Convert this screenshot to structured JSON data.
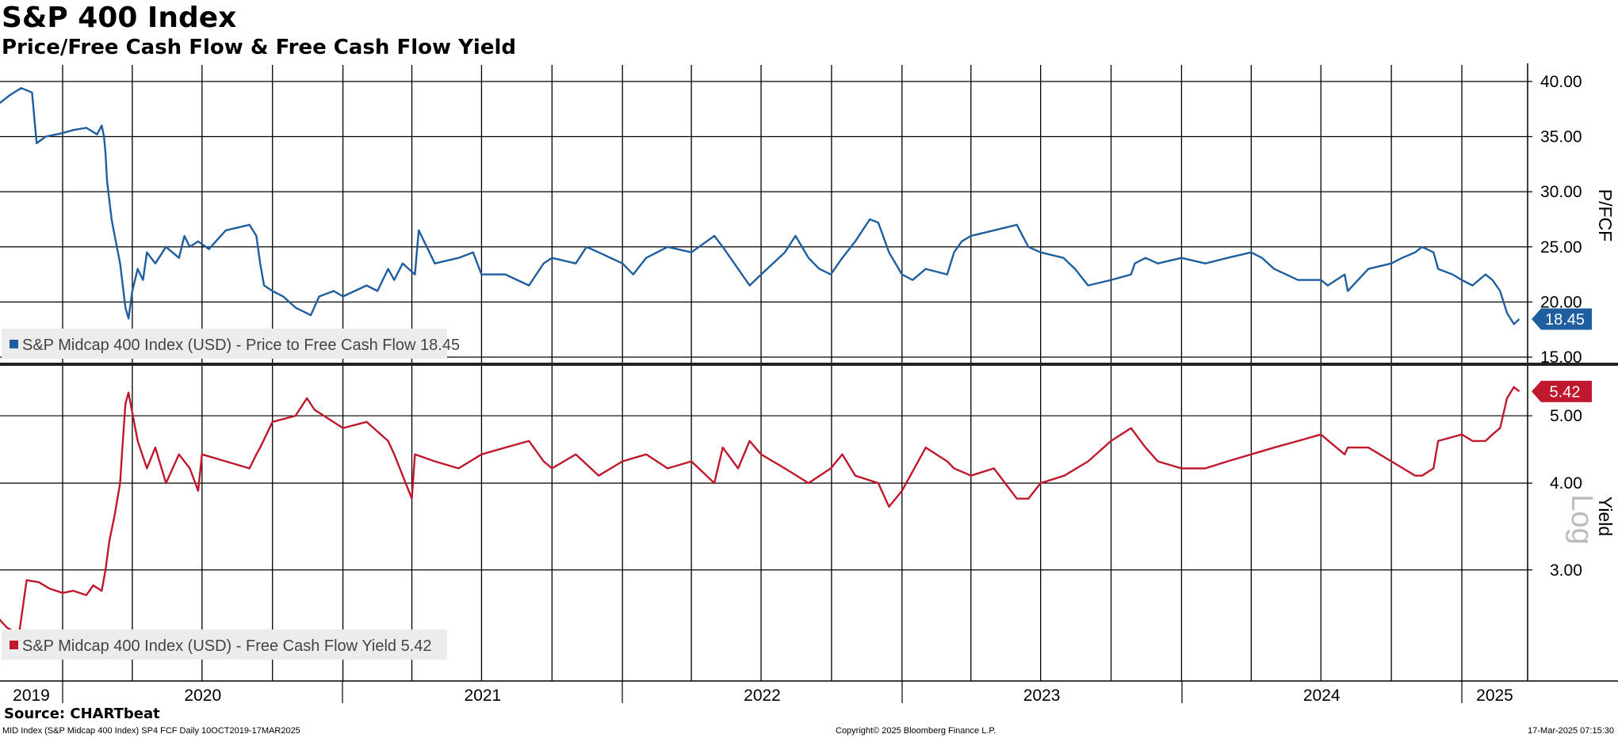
{
  "title": "S&P 400 Index",
  "subtitle": "Price/Free Cash Flow & Free Cash Flow Yield",
  "source": "Source: CHARTbeat",
  "footer": {
    "left": "MID Index (S&P Midcap 400 Index) SP4 FCF  Daily 10OCT2019-17MAR2025",
    "center": "Copyright© 2025 Bloomberg Finance L.P.",
    "right": "17-Mar-2025 07:15:30"
  },
  "colors": {
    "pfcf": "#1f5fa0",
    "yield": "#c0182e",
    "grid": "#000000"
  },
  "chart_data": [
    {
      "type": "line",
      "panel": "top",
      "axis_label": "P/FCF",
      "y_ticks": [
        "40.00",
        "35.00",
        "30.00",
        "25.00",
        "20.00",
        "15.00"
      ],
      "ylim": [
        14.5,
        41.5
      ],
      "grid": true,
      "legend": "bottom-left",
      "last_value_label": "18.45",
      "series": [
        {
          "name": "S&P Midcap 400 Index (USD) - Price to Free Cash Flow 18.45",
          "x": [
            "2019-10-10",
            "2019-10-25",
            "2019-11-08",
            "2019-11-22",
            "2019-11-28",
            "2019-12-10",
            "2019-12-31",
            "2020-01-15",
            "2020-02-01",
            "2020-02-15",
            "2020-02-21",
            "2020-02-24",
            "2020-02-26",
            "2020-02-28",
            "2020-03-05",
            "2020-03-09",
            "2020-03-16",
            "2020-03-23",
            "2020-03-27",
            "2020-04-01",
            "2020-04-08",
            "2020-04-15",
            "2020-04-20",
            "2020-05-01",
            "2020-05-15",
            "2020-06-01",
            "2020-06-08",
            "2020-06-15",
            "2020-06-26",
            "2020-07-10",
            "2020-08-01",
            "2020-09-01",
            "2020-09-10",
            "2020-09-15",
            "2020-09-20",
            "2020-10-01",
            "2020-10-15",
            "2020-10-31",
            "2020-11-20",
            "2020-12-01",
            "2020-12-20",
            "2021-01-01",
            "2021-02-01",
            "2021-02-15",
            "2021-03-01",
            "2021-03-09",
            "2021-03-20",
            "2021-04-05",
            "2021-04-10",
            "2021-05-01",
            "2021-06-01",
            "2021-06-20",
            "2021-07-01",
            "2021-08-01",
            "2021-09-01",
            "2021-09-20",
            "2021-10-01",
            "2021-11-01",
            "2021-11-15",
            "2021-12-01",
            "2022-01-01",
            "2022-01-15",
            "2022-02-01",
            "2022-03-01",
            "2022-04-01",
            "2022-05-01",
            "2022-05-12",
            "2022-06-01",
            "2022-06-16",
            "2022-07-01",
            "2022-08-01",
            "2022-08-15",
            "2022-09-01",
            "2022-09-15",
            "2022-09-30",
            "2022-10-15",
            "2022-11-01",
            "2022-11-20",
            "2022-12-01",
            "2022-12-15",
            "2023-01-01",
            "2023-01-15",
            "2023-02-01",
            "2023-03-01",
            "2023-03-10",
            "2023-03-20",
            "2023-04-01",
            "2023-05-01",
            "2023-05-31",
            "2023-06-15",
            "2023-07-01",
            "2023-07-31",
            "2023-08-15",
            "2023-09-01",
            "2023-10-01",
            "2023-10-27",
            "2023-11-01",
            "2023-11-15",
            "2023-12-01",
            "2024-01-01",
            "2024-02-01",
            "2024-03-01",
            "2024-04-01",
            "2024-04-15",
            "2024-05-01",
            "2024-06-01",
            "2024-07-01",
            "2024-07-10",
            "2024-08-01",
            "2024-08-05",
            "2024-09-01",
            "2024-10-01",
            "2024-10-15",
            "2024-11-01",
            "2024-11-10",
            "2024-11-25",
            "2024-12-01",
            "2024-12-20",
            "2025-01-01",
            "2025-01-15",
            "2025-02-01",
            "2025-02-10",
            "2025-02-20",
            "2025-03-01",
            "2025-03-10",
            "2025-03-17"
          ],
          "values": [
            38.0,
            38.8,
            39.4,
            39.0,
            34.4,
            35.0,
            35.3,
            35.6,
            35.8,
            35.2,
            36.0,
            35.0,
            33.5,
            31.0,
            27.5,
            26.0,
            23.5,
            19.5,
            18.5,
            21.0,
            23.0,
            22.0,
            24.5,
            23.5,
            25.0,
            24.0,
            26.0,
            25.0,
            25.5,
            24.8,
            26.5,
            27.0,
            26.0,
            23.5,
            21.5,
            21.0,
            20.5,
            19.5,
            18.8,
            20.5,
            21.0,
            20.5,
            21.5,
            21.0,
            23.0,
            22.0,
            23.5,
            22.5,
            26.5,
            23.5,
            24.0,
            24.5,
            22.5,
            22.5,
            21.5,
            23.5,
            24.0,
            23.5,
            25.0,
            24.5,
            23.5,
            22.5,
            24.0,
            25.0,
            24.5,
            26.0,
            25.0,
            23.0,
            21.5,
            22.5,
            24.5,
            26.0,
            24.0,
            23.0,
            22.5,
            24.0,
            25.5,
            27.5,
            27.2,
            24.5,
            22.5,
            22.0,
            23.0,
            22.5,
            24.5,
            25.5,
            26.0,
            26.5,
            27.0,
            25.0,
            24.5,
            24.0,
            23.0,
            21.5,
            22.0,
            22.5,
            23.5,
            24.0,
            23.5,
            24.0,
            23.5,
            24.0,
            24.5,
            24.0,
            23.0,
            22.0,
            22.0,
            21.5,
            22.5,
            21.0,
            23.0,
            23.5,
            24.0,
            24.5,
            25.0,
            24.5,
            23.0,
            22.5,
            22.0,
            21.5,
            22.5,
            22.0,
            21.0,
            19.0,
            18.0,
            18.45
          ]
        }
      ]
    },
    {
      "type": "line",
      "panel": "bottom",
      "axis_label": "Yield",
      "scale": "log",
      "scale_watermark": "Log",
      "y_ticks": [
        "5.00",
        "4.00",
        "3.00"
      ],
      "ylim": [
        2.2,
        5.9
      ],
      "grid": true,
      "legend": "bottom-left",
      "last_value_label": "5.42",
      "series": [
        {
          "name": "S&P Midcap 400 Index (USD) - Free Cash Flow Yield 5.42",
          "x": [
            "2019-10-10",
            "2019-10-20",
            "2019-10-28",
            "2019-11-05",
            "2019-11-15",
            "2019-12-01",
            "2019-12-15",
            "2020-01-01",
            "2020-01-15",
            "2020-02-01",
            "2020-02-10",
            "2020-02-21",
            "2020-02-26",
            "2020-03-02",
            "2020-03-09",
            "2020-03-16",
            "2020-03-19",
            "2020-03-23",
            "2020-03-27",
            "2020-04-08",
            "2020-04-20",
            "2020-05-01",
            "2020-05-15",
            "2020-06-01",
            "2020-06-15",
            "2020-06-26",
            "2020-07-01",
            "2020-08-01",
            "2020-09-01",
            "2020-09-10",
            "2020-09-15",
            "2020-10-01",
            "2020-10-31",
            "2020-11-15",
            "2020-11-25",
            "2021-01-01",
            "2021-02-01",
            "2021-03-01",
            "2021-03-09",
            "2021-04-01",
            "2021-04-05",
            "2021-05-01",
            "2021-06-01",
            "2021-07-01",
            "2021-08-01",
            "2021-09-01",
            "2021-09-20",
            "2021-10-01",
            "2021-11-01",
            "2021-12-01",
            "2022-01-01",
            "2022-02-01",
            "2022-03-01",
            "2022-04-01",
            "2022-05-01",
            "2022-05-12",
            "2022-06-01",
            "2022-06-16",
            "2022-07-01",
            "2022-08-01",
            "2022-09-01",
            "2022-09-30",
            "2022-10-15",
            "2022-11-01",
            "2022-12-01",
            "2022-12-15",
            "2023-01-01",
            "2023-02-01",
            "2023-03-01",
            "2023-03-10",
            "2023-04-01",
            "2023-05-01",
            "2023-05-31",
            "2023-06-15",
            "2023-07-01",
            "2023-08-01",
            "2023-09-01",
            "2023-10-01",
            "2023-10-27",
            "2023-11-15",
            "2023-12-01",
            "2024-01-01",
            "2024-02-01",
            "2024-03-01",
            "2024-04-01",
            "2024-05-01",
            "2024-06-01",
            "2024-07-01",
            "2024-08-01",
            "2024-08-05",
            "2024-09-01",
            "2024-10-01",
            "2024-11-01",
            "2024-11-10",
            "2024-11-25",
            "2024-12-01",
            "2025-01-01",
            "2025-01-15",
            "2025-02-01",
            "2025-02-10",
            "2025-02-20",
            "2025-03-01",
            "2025-03-10",
            "2025-03-17"
          ],
          "values": [
            2.55,
            2.48,
            2.45,
            2.42,
            2.9,
            2.88,
            2.82,
            2.78,
            2.8,
            2.76,
            2.85,
            2.8,
            3.0,
            3.3,
            3.6,
            4.0,
            4.5,
            5.2,
            5.4,
            4.6,
            4.2,
            4.5,
            4.0,
            4.4,
            4.2,
            3.9,
            4.4,
            4.3,
            4.2,
            4.4,
            4.5,
            4.9,
            5.0,
            5.3,
            5.1,
            4.8,
            4.9,
            4.6,
            4.4,
            3.8,
            4.4,
            4.3,
            4.2,
            4.4,
            4.5,
            4.6,
            4.3,
            4.2,
            4.4,
            4.1,
            4.3,
            4.4,
            4.2,
            4.3,
            4.0,
            4.5,
            4.2,
            4.6,
            4.4,
            4.2,
            4.0,
            4.2,
            4.4,
            4.1,
            4.0,
            3.7,
            3.9,
            4.5,
            4.3,
            4.2,
            4.1,
            4.2,
            3.8,
            3.8,
            4.0,
            4.1,
            4.3,
            4.6,
            4.8,
            4.5,
            4.3,
            4.2,
            4.2,
            4.3,
            4.4,
            4.5,
            4.6,
            4.7,
            4.4,
            4.5,
            4.5,
            4.3,
            4.1,
            4.1,
            4.2,
            4.6,
            4.7,
            4.6,
            4.6,
            4.7,
            4.8,
            5.3,
            5.5,
            5.42
          ]
        }
      ]
    }
  ],
  "x_axis": {
    "labels": [
      "2019",
      "2020",
      "2021",
      "2022",
      "2023",
      "2024",
      "2025"
    ]
  }
}
